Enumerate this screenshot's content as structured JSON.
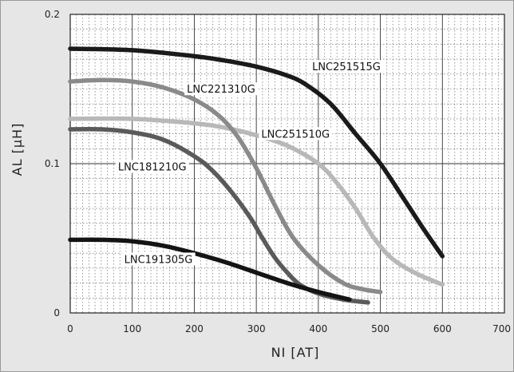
{
  "chart_data": {
    "type": "line",
    "xlabel": "NI [AT]",
    "ylabel": "AL [μH]",
    "xlim": [
      0,
      700
    ],
    "ylim": [
      0,
      0.2
    ],
    "x_ticks": [
      "0",
      "100",
      "200",
      "300",
      "400",
      "500",
      "600",
      "700"
    ],
    "y_ticks": [
      "0",
      "0.1",
      "0.2"
    ],
    "grid": "dotted minor grid, solid major lines at 100 AT and 0.1 μH",
    "series": [
      {
        "name": "LNC251515G",
        "color": "#1a1a1a",
        "x": [
          0,
          100,
          200,
          250,
          300,
          350,
          380,
          420,
          460,
          500,
          540,
          570,
          600
        ],
        "y": [
          0.177,
          0.176,
          0.172,
          0.169,
          0.165,
          0.159,
          0.153,
          0.14,
          0.12,
          0.1,
          0.075,
          0.056,
          0.038
        ]
      },
      {
        "name": "LNC221310G",
        "color": "#8a8a8a",
        "x": [
          0,
          50,
          100,
          150,
          200,
          240,
          270,
          300,
          330,
          360,
          400,
          440,
          470,
          500
        ],
        "y": [
          0.155,
          0.156,
          0.155,
          0.151,
          0.143,
          0.132,
          0.118,
          0.097,
          0.072,
          0.05,
          0.032,
          0.02,
          0.016,
          0.014
        ]
      },
      {
        "name": "LNC251510G",
        "color": "#b8b8b8",
        "x": [
          0,
          100,
          200,
          250,
          300,
          350,
          400,
          430,
          460,
          490,
          520,
          560,
          600
        ],
        "y": [
          0.13,
          0.13,
          0.127,
          0.124,
          0.119,
          0.112,
          0.1,
          0.087,
          0.07,
          0.05,
          0.036,
          0.026,
          0.019
        ]
      },
      {
        "name": "LNC181210G",
        "color": "#5a5a5a",
        "x": [
          0,
          50,
          100,
          150,
          200,
          230,
          260,
          290,
          310,
          330,
          350,
          370,
          400,
          440,
          480
        ],
        "y": [
          0.123,
          0.123,
          0.121,
          0.116,
          0.105,
          0.095,
          0.081,
          0.064,
          0.05,
          0.037,
          0.027,
          0.019,
          0.013,
          0.009,
          0.007
        ]
      },
      {
        "name": "LNC191305G",
        "color": "#141414",
        "x": [
          0,
          50,
          100,
          150,
          200,
          250,
          300,
          350,
          400,
          450
        ],
        "y": [
          0.049,
          0.049,
          0.048,
          0.045,
          0.04,
          0.034,
          0.027,
          0.02,
          0.014,
          0.009
        ]
      }
    ],
    "annotations": [
      {
        "series": "LNC251515G",
        "x": 390,
        "y": 0.163
      },
      {
        "series": "LNC221310G",
        "x": 188,
        "y": 0.148
      },
      {
        "series": "LNC251510G",
        "x": 308,
        "y": 0.118
      },
      {
        "series": "LNC181210G",
        "x": 77,
        "y": 0.096
      },
      {
        "series": "LNC191305G",
        "x": 87,
        "y": 0.034
      }
    ]
  }
}
